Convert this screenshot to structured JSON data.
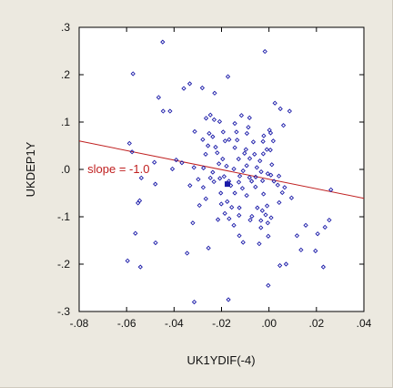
{
  "chart_data": {
    "type": "scatter",
    "xlabel": "UK1YDIF(-4)",
    "ylabel": "UKDEP1Y",
    "xlim": [
      -0.08,
      0.04
    ],
    "ylim": [
      -0.3,
      0.3
    ],
    "x_ticks": [
      "-.08",
      "-.06",
      "-.04",
      "-.02",
      ".00",
      ".02",
      ".04"
    ],
    "y_ticks": [
      ".3",
      ".2",
      ".1",
      ".0",
      "-.1",
      "-.2",
      "-.3"
    ],
    "x_tick_values": [
      -0.08,
      -0.06,
      -0.04,
      -0.02,
      0.0,
      0.02,
      0.04
    ],
    "y_tick_values": [
      0.3,
      0.2,
      0.1,
      0.0,
      -0.1,
      -0.2,
      -0.3
    ],
    "grid": false,
    "marker_color": "#1a1aa8",
    "line_color": "#c02020",
    "fit_line": {
      "x": [
        -0.08,
        0.04
      ],
      "y": [
        0.06,
        -0.061
      ]
    },
    "annotation": {
      "text": "slope = -1.0",
      "x": -0.0765,
      "y": 0.0
    },
    "highlight_point": {
      "x": -0.0175,
      "y": -0.031
    },
    "points": [
      [
        -0.0448,
        0.269
      ],
      [
        -0.0017,
        0.249
      ],
      [
        -0.0573,
        0.202
      ],
      [
        -0.0334,
        0.181
      ],
      [
        -0.0281,
        0.172
      ],
      [
        -0.0173,
        0.196
      ],
      [
        -0.0359,
        0.171
      ],
      [
        -0.0229,
        0.161
      ],
      [
        -0.0465,
        0.152
      ],
      [
        -0.0446,
        0.123
      ],
      [
        -0.0417,
        0.123
      ],
      [
        0.0025,
        0.14
      ],
      [
        0.0048,
        0.128
      ],
      [
        0.0087,
        0.123
      ],
      [
        -0.0247,
        0.115
      ],
      [
        -0.0231,
        0.105
      ],
      [
        -0.0265,
        0.108
      ],
      [
        -0.0116,
        0.114
      ],
      [
        -0.0082,
        0.109
      ],
      [
        -0.0208,
        0.101
      ],
      [
        -0.0144,
        0.097
      ],
      [
        -0.0087,
        0.089
      ],
      [
        0.0061,
        0.093
      ],
      [
        -0.0313,
        0.08
      ],
      [
        -0.0252,
        0.076
      ],
      [
        -0.0193,
        0.079
      ],
      [
        -0.0137,
        0.079
      ],
      [
        -0.0093,
        0.076
      ],
      [
        -0.0022,
        0.071
      ],
      [
        0.0002,
        0.083
      ],
      [
        0.0007,
        0.077
      ],
      [
        -0.0237,
        0.069
      ],
      [
        -0.0279,
        0.063
      ],
      [
        -0.0185,
        0.06
      ],
      [
        -0.0168,
        0.063
      ],
      [
        -0.0134,
        0.062
      ],
      [
        -0.0066,
        0.058
      ],
      [
        -0.0025,
        0.059
      ],
      [
        0.0018,
        0.06
      ],
      [
        -0.0257,
        0.05
      ],
      [
        -0.0225,
        0.047
      ],
      [
        -0.0144,
        0.046
      ],
      [
        -0.0097,
        0.042
      ],
      [
        -0.0009,
        0.042
      ],
      [
        -0.0588,
        0.055
      ],
      [
        -0.0577,
        0.037
      ],
      [
        -0.0267,
        0.032
      ],
      [
        -0.0218,
        0.035
      ],
      [
        -0.0103,
        0.034
      ],
      [
        -0.0061,
        0.032
      ],
      [
        -0.0024,
        0.033
      ],
      [
        0.0006,
        0.041
      ],
      [
        -0.0195,
        0.022
      ],
      [
        -0.0128,
        0.022
      ],
      [
        -0.0081,
        0.023
      ],
      [
        -0.0038,
        0.018
      ],
      [
        -0.0483,
        0.015
      ],
      [
        -0.0391,
        0.02
      ],
      [
        -0.0367,
        0.014
      ],
      [
        -0.0316,
        0.004
      ],
      [
        -0.0211,
        0.012
      ],
      [
        -0.0179,
        0.007
      ],
      [
        -0.0094,
        0.008
      ],
      [
        -0.0051,
        0.004
      ],
      [
        0.0012,
        0.01
      ],
      [
        -0.0407,
        0.001
      ],
      [
        -0.0276,
        0.003
      ],
      [
        -0.0237,
        -0.006
      ],
      [
        -0.0148,
        0.001
      ],
      [
        -0.0109,
        -0.003
      ],
      [
        -0.0033,
        -0.005
      ],
      [
        -0.0005,
        -0.009
      ],
      [
        -0.0538,
        -0.018
      ],
      [
        -0.0247,
        -0.018
      ],
      [
        -0.0207,
        -0.019
      ],
      [
        -0.0189,
        -0.015
      ],
      [
        -0.0123,
        -0.014
      ],
      [
        -0.0082,
        -0.017
      ],
      [
        -0.0056,
        -0.016
      ],
      [
        0.0008,
        -0.012
      ],
      [
        0.0042,
        -0.014
      ],
      [
        -0.0298,
        -0.021
      ],
      [
        -0.0232,
        -0.026
      ],
      [
        -0.0169,
        -0.025
      ],
      [
        -0.0127,
        -0.027
      ],
      [
        -0.0073,
        -0.025
      ],
      [
        -0.0027,
        -0.024
      ],
      [
        0.0021,
        -0.025
      ],
      [
        -0.0479,
        -0.031
      ],
      [
        -0.0333,
        -0.034
      ],
      [
        -0.0277,
        -0.038
      ],
      [
        -0.0161,
        -0.034
      ],
      [
        -0.0112,
        -0.04
      ],
      [
        -0.0057,
        -0.037
      ],
      [
        0.0037,
        -0.033
      ],
      [
        0.0066,
        -0.038
      ],
      [
        0.0261,
        -0.043
      ],
      [
        -0.0203,
        -0.05
      ],
      [
        -0.0144,
        -0.05
      ],
      [
        -0.0094,
        -0.055
      ],
      [
        -0.0023,
        -0.052
      ],
      [
        0.0056,
        -0.049
      ],
      [
        -0.0266,
        -0.062
      ],
      [
        -0.0176,
        -0.068
      ],
      [
        -0.0545,
        -0.066
      ],
      [
        -0.0552,
        -0.071
      ],
      [
        0.0095,
        -0.06
      ],
      [
        0.0043,
        -0.07
      ],
      [
        -0.0293,
        -0.076
      ],
      [
        -0.0201,
        -0.073
      ],
      [
        -0.0157,
        -0.08
      ],
      [
        -0.0125,
        -0.081
      ],
      [
        -0.0049,
        -0.081
      ],
      [
        -0.0008,
        -0.077
      ],
      [
        -0.0028,
        -0.087
      ],
      [
        -0.0186,
        -0.093
      ],
      [
        -0.0126,
        -0.097
      ],
      [
        -0.0072,
        -0.099
      ],
      [
        -0.0014,
        -0.096
      ],
      [
        0.0009,
        -0.102
      ],
      [
        -0.0215,
        -0.106
      ],
      [
        -0.0168,
        -0.104
      ],
      [
        -0.0079,
        -0.107
      ],
      [
        -0.0034,
        -0.108
      ],
      [
        -0.0321,
        -0.113
      ],
      [
        -0.0148,
        -0.118
      ],
      [
        -0.0005,
        -0.113
      ],
      [
        0.0254,
        -0.107
      ],
      [
        0.0236,
        -0.122
      ],
      [
        0.0155,
        -0.118
      ],
      [
        -0.0034,
        -0.123
      ],
      [
        -0.0563,
        -0.135
      ],
      [
        -0.0125,
        -0.14
      ],
      [
        -0.0003,
        -0.141
      ],
      [
        0.0118,
        -0.14
      ],
      [
        0.0205,
        -0.136
      ],
      [
        -0.0478,
        -0.155
      ],
      [
        -0.0109,
        -0.154
      ],
      [
        -0.0041,
        -0.157
      ],
      [
        -0.0255,
        -0.166
      ],
      [
        -0.0345,
        -0.177
      ],
      [
        0.0135,
        -0.17
      ],
      [
        0.0196,
        -0.172
      ],
      [
        -0.0596,
        -0.193
      ],
      [
        -0.0542,
        -0.206
      ],
      [
        0.0046,
        -0.203
      ],
      [
        0.0072,
        -0.2
      ],
      [
        0.0229,
        -0.206
      ],
      [
        -0.0003,
        -0.245
      ],
      [
        -0.0315,
        -0.28
      ],
      [
        -0.0171,
        -0.275
      ]
    ]
  }
}
